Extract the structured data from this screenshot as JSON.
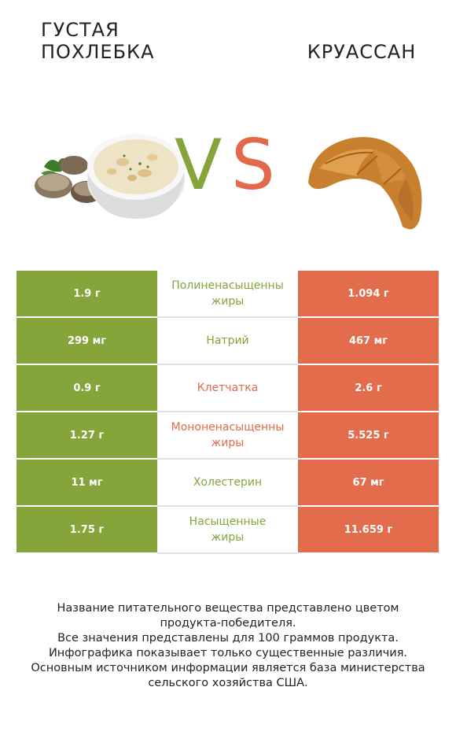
{
  "left_food": {
    "name": "Густая похлебка",
    "name_line1": "ГУСТАЯ",
    "name_line2": "ПОХЛЕБКА"
  },
  "right_food": {
    "name": "КРУАССАН"
  },
  "vs": {
    "v": "V",
    "s": "S"
  },
  "colors": {
    "left": "#85a53b",
    "right": "#e36c4c"
  },
  "rows": [
    {
      "nutrient_line1": "Полиненасыщенны",
      "nutrient_line2": "жиры",
      "left": "1.9 г",
      "right": "1.094 г",
      "winner": "left"
    },
    {
      "nutrient_line1": "Натрий",
      "nutrient_line2": "",
      "left": "299 мг",
      "right": "467 мг",
      "winner": "left"
    },
    {
      "nutrient_line1": "Клетчатка",
      "nutrient_line2": "",
      "left": "0.9 г",
      "right": "2.6 г",
      "winner": "right"
    },
    {
      "nutrient_line1": "Мононенасыщенны",
      "nutrient_line2": "жиры",
      "left": "1.27 г",
      "right": "5.525 г",
      "winner": "right"
    },
    {
      "nutrient_line1": "Холестерин",
      "nutrient_line2": "",
      "left": "11 мг",
      "right": "67 мг",
      "winner": "left"
    },
    {
      "nutrient_line1": "Насыщенные",
      "nutrient_line2": "жиры",
      "left": "1.75 г",
      "right": "11.659 г",
      "winner": "left"
    }
  ],
  "footer": {
    "line1": "Название питательного вещества представлено цветом",
    "line2": "продукта-победителя.",
    "line3": "Все значения представлены для 100 граммов продукта.",
    "line4": "Инфографика показывает только существенные различия.",
    "line5": "Основным источником информации является база министерства",
    "line6": "сельского хозяйства США."
  }
}
